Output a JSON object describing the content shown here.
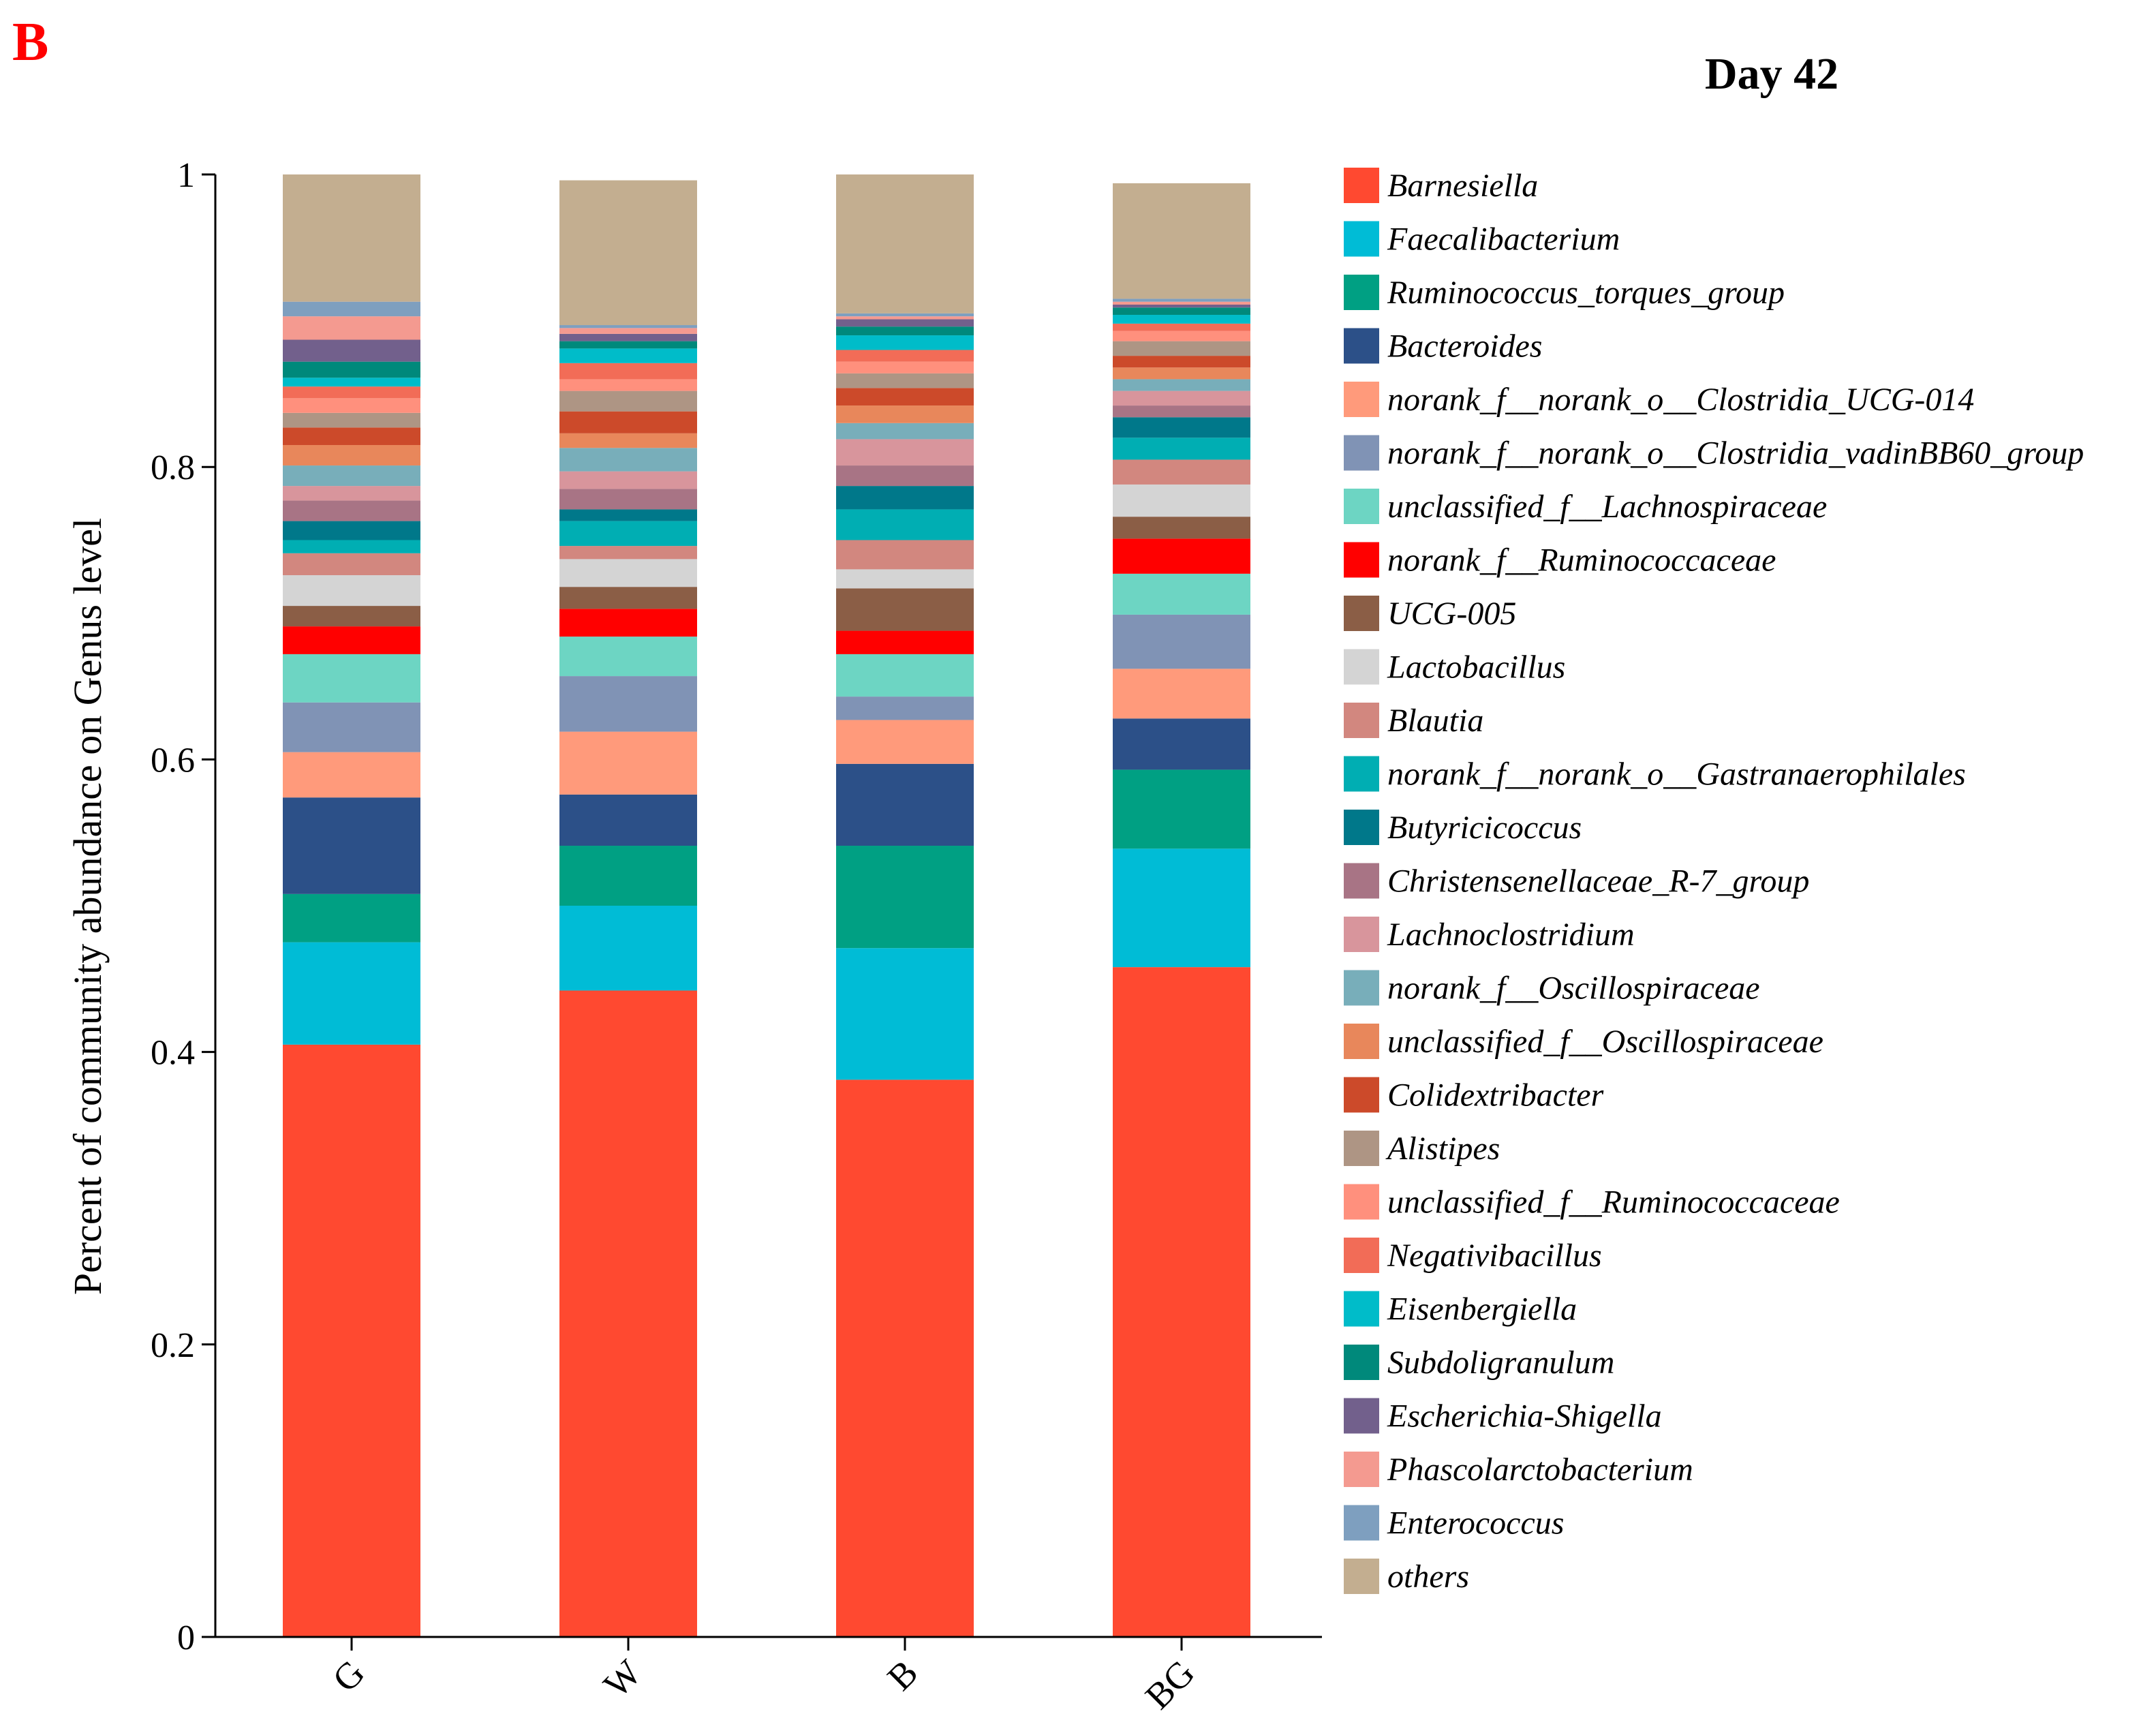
{
  "panel_label": "B",
  "panel_label_color": "#ff0000",
  "chart_data": {
    "type": "bar",
    "stacked": true,
    "title": "Day 42",
    "xlabel": "",
    "ylabel": "Percent of community abundance on Genus level",
    "ylim": [
      0,
      1
    ],
    "yticks": [
      "0",
      "0.2",
      "0.4",
      "0.6",
      "0.8",
      "1"
    ],
    "ytick_values": [
      0,
      0.2,
      0.4,
      0.6,
      0.8,
      1
    ],
    "categories": [
      "G",
      "W",
      "B",
      "BG"
    ],
    "grid": false,
    "legend_position": "right",
    "series": [
      {
        "name": "Barnesiella",
        "color": "#ff4930",
        "values": [
          0.405,
          0.442,
          0.381,
          0.458
        ]
      },
      {
        "name": "Faecalibacterium",
        "color": "#00bcd6",
        "values": [
          0.07,
          0.058,
          0.09,
          0.081
        ]
      },
      {
        "name": "Ruminococcus_torques_group",
        "color": "#00a083",
        "values": [
          0.033,
          0.041,
          0.07,
          0.054
        ]
      },
      {
        "name": "Bacteroides",
        "color": "#2c5088",
        "values": [
          0.066,
          0.035,
          0.056,
          0.035
        ]
      },
      {
        "name": "norank_f__norank_o__Clostridia_UCG-014",
        "color": "#ff9a7b",
        "values": [
          0.031,
          0.043,
          0.03,
          0.034
        ]
      },
      {
        "name": "norank_f__norank_o__Clostridia_vadinBB60_group",
        "color": "#8093b5",
        "values": [
          0.034,
          0.038,
          0.016,
          0.037
        ]
      },
      {
        "name": "unclassified_f__Lachnospiraceae",
        "color": "#6dd5c3",
        "values": [
          0.033,
          0.027,
          0.029,
          0.028
        ]
      },
      {
        "name": "norank_f__Ruminococcaceae",
        "color": "#ff0000",
        "values": [
          0.019,
          0.019,
          0.016,
          0.024
        ]
      },
      {
        "name": "UCG-005",
        "color": "#8b5e46",
        "values": [
          0.014,
          0.015,
          0.029,
          0.015
        ]
      },
      {
        "name": "Lactobacillus",
        "color": "#d4d4d4",
        "values": [
          0.021,
          0.019,
          0.013,
          0.022
        ]
      },
      {
        "name": "Blautia",
        "color": "#d2877f",
        "values": [
          0.015,
          0.009,
          0.02,
          0.017
        ]
      },
      {
        "name": "norank_f__norank_o__Gastranaerophilales",
        "color": "#00aeb3",
        "values": [
          0.009,
          0.017,
          0.021,
          0.015
        ]
      },
      {
        "name": "Butyricicoccus",
        "color": "#00788a",
        "values": [
          0.013,
          0.008,
          0.016,
          0.014
        ]
      },
      {
        "name": "Christensenellaceae_R-7_group",
        "color": "#a87485",
        "values": [
          0.014,
          0.014,
          0.014,
          0.008
        ]
      },
      {
        "name": "Lachnoclostridium",
        "color": "#d8959c",
        "values": [
          0.01,
          0.012,
          0.018,
          0.01
        ]
      },
      {
        "name": "norank_f__Oscillospiraceae",
        "color": "#78aeba",
        "values": [
          0.014,
          0.016,
          0.011,
          0.008
        ]
      },
      {
        "name": "unclassified_f__Oscillospiraceae",
        "color": "#e8875b",
        "values": [
          0.014,
          0.01,
          0.012,
          0.008
        ]
      },
      {
        "name": "Colidextribacter",
        "color": "#cc4a2a",
        "values": [
          0.012,
          0.015,
          0.012,
          0.008
        ]
      },
      {
        "name": "Alistipes",
        "color": "#ae9584",
        "values": [
          0.01,
          0.014,
          0.01,
          0.01
        ]
      },
      {
        "name": "unclassified_f__Ruminococcaceae",
        "color": "#ff907d",
        "values": [
          0.01,
          0.008,
          0.008,
          0.007
        ]
      },
      {
        "name": "Negativibacillus",
        "color": "#f26c57",
        "values": [
          0.008,
          0.011,
          0.008,
          0.005
        ]
      },
      {
        "name": "Eisenbergiella",
        "color": "#00bcc9",
        "values": [
          0.006,
          0.01,
          0.01,
          0.006
        ]
      },
      {
        "name": "Subdoligranulum",
        "color": "#00897b",
        "values": [
          0.011,
          0.005,
          0.006,
          0.005
        ]
      },
      {
        "name": "Escherichia-Shigella",
        "color": "#72608c",
        "values": [
          0.015,
          0.005,
          0.005,
          0.002
        ]
      },
      {
        "name": "Phascolarctobacterium",
        "color": "#f49a90",
        "values": [
          0.016,
          0.004,
          0.002,
          0.002
        ]
      },
      {
        "name": "Enterococcus",
        "color": "#7e9fbf",
        "values": [
          0.01,
          0.002,
          0.002,
          0.002
        ]
      },
      {
        "name": "others",
        "color": "#c3ae90",
        "values": [
          0.092,
          0.099,
          0.095,
          0.079
        ]
      }
    ]
  }
}
